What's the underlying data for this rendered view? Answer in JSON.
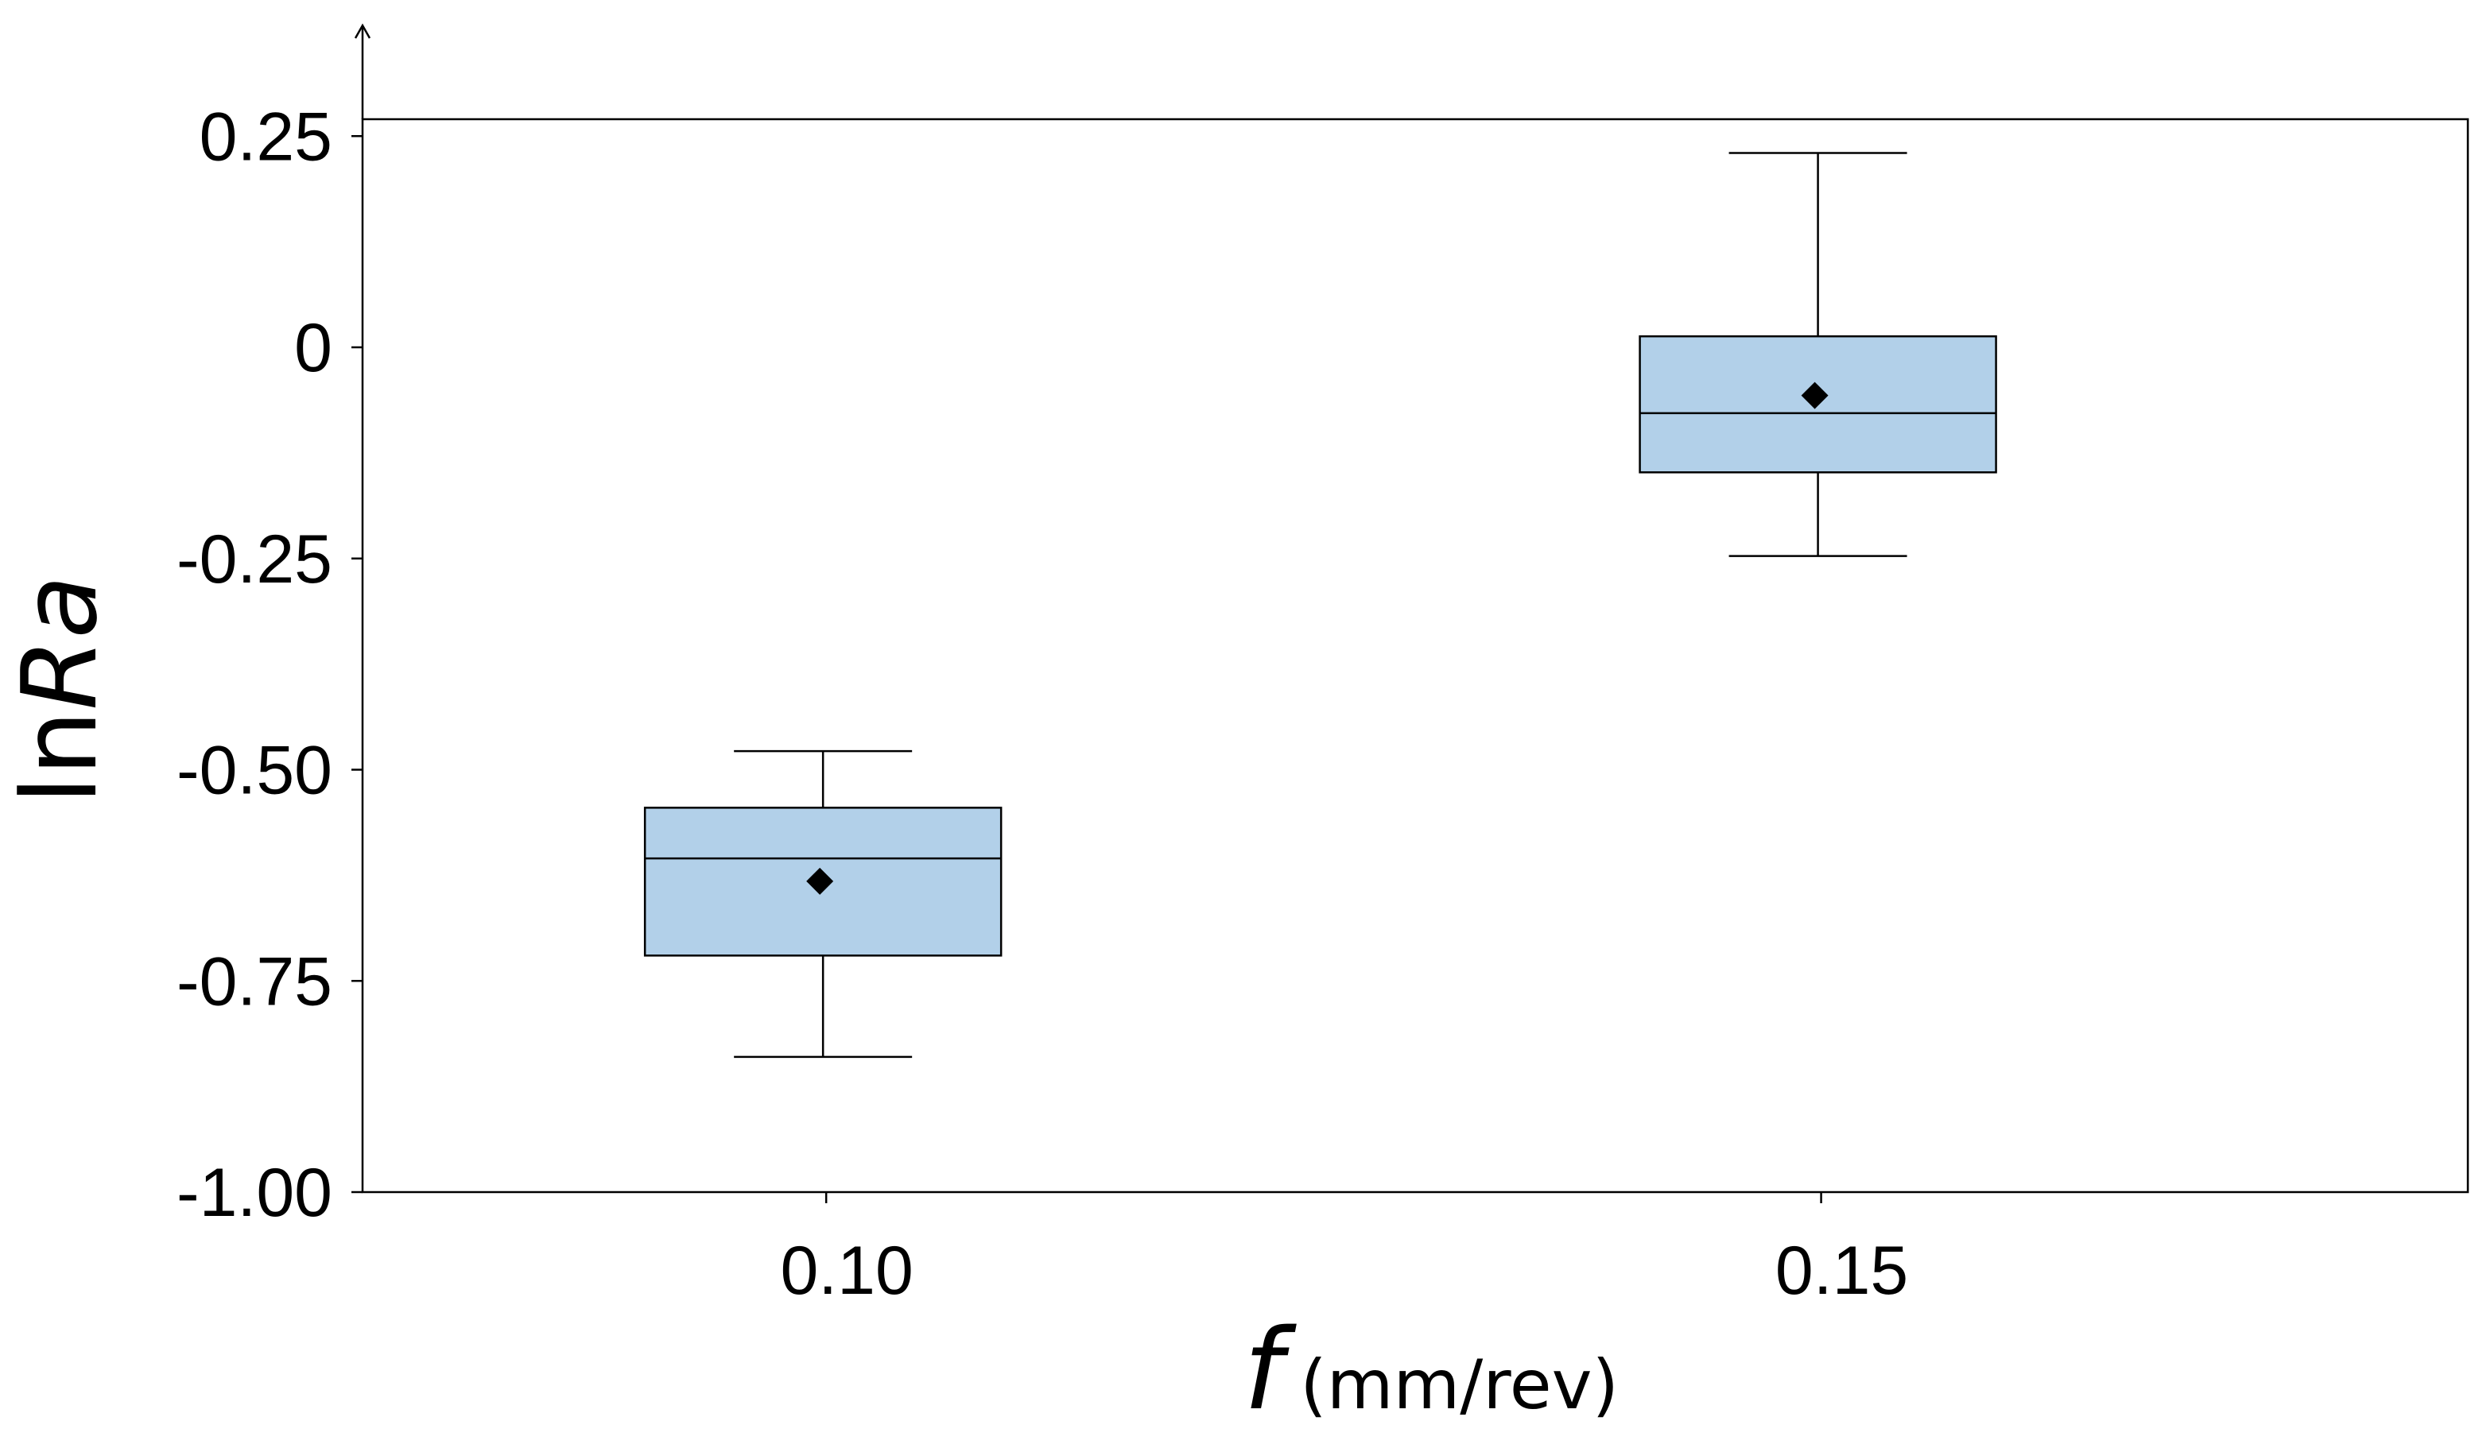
{
  "chart_data": {
    "type": "box",
    "title": "",
    "xlabel": {
      "symbol": "f",
      "unit": "(mm/rev)"
    },
    "ylabel": {
      "prefix": "ln",
      "symbol": "Ra"
    },
    "ylim": [
      -1.0,
      0.27
    ],
    "xlim": [
      0.0767,
      0.1825
    ],
    "y_ticks": [
      0.25,
      0,
      -0.25,
      -0.5,
      -0.75,
      -1.0
    ],
    "y_tick_labels": [
      "0.25",
      "0",
      "-0.25",
      "-0.50",
      "-0.75",
      "-1.00"
    ],
    "x_ticks": [
      0.1,
      0.15
    ],
    "x_tick_labels": [
      "0.10",
      "0.15"
    ],
    "categories": [
      "0.10",
      "0.15"
    ],
    "boxes": [
      {
        "category": "0.10",
        "x": 0.1,
        "whisker_low": -0.84,
        "q1": -0.72,
        "median": -0.605,
        "q3": -0.545,
        "whisker_high": -0.478,
        "mean": -0.632
      },
      {
        "category": "0.15",
        "x": 0.15,
        "whisker_low": -0.247,
        "q1": -0.148,
        "median": -0.078,
        "q3": 0.013,
        "whisker_high": 0.23,
        "mean": -0.057
      }
    ],
    "colors": {
      "box_fill": "#b2d0e9",
      "stroke": "#000000"
    }
  }
}
